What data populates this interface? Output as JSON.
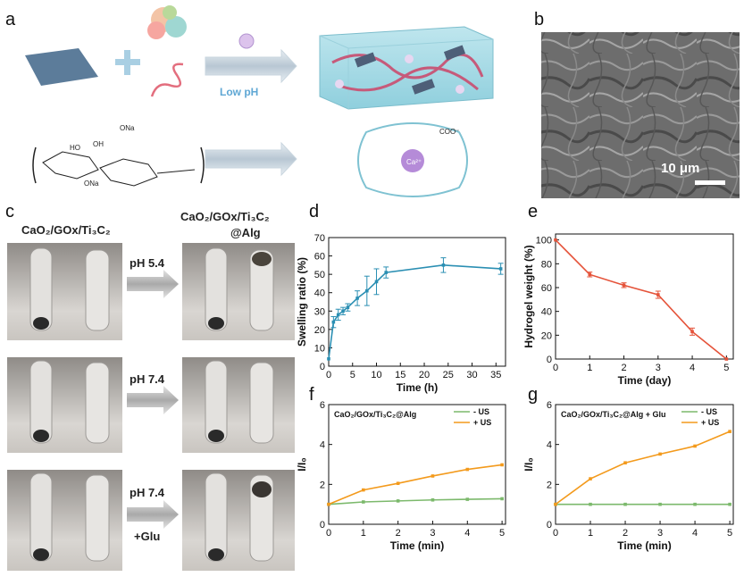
{
  "panel_labels": {
    "a": "a",
    "b": "b",
    "c": "c",
    "d": "d",
    "e": "e",
    "f": "f",
    "g": "g"
  },
  "panel_a": {
    "low_ph": "Low pH",
    "ona_top": "ONa",
    "ona_bottom": "ONa",
    "ho1": "HO",
    "oh1": "OH",
    "ca_ion": "Ca²⁺",
    "coo": "COO⁻"
  },
  "panel_b": {
    "scale_bar": "10 μm"
  },
  "panel_c": {
    "left_title": "CaO₂/GOx/Ti₃C₂",
    "right_title_1": "CaO₂/GOx/Ti₃C₂",
    "right_title_2": "@Alg",
    "arrow1": "pH 5.4",
    "arrow2": "pH 7.4",
    "arrow3_line1": "pH 7.4",
    "arrow3_line2": "+Glu"
  },
  "colors": {
    "swelling": "#2b8fb3",
    "weight": "#e5533a",
    "minus_us": "#7cb96c",
    "plus_us": "#f39a1c"
  },
  "chart_data": [
    {
      "id": "d",
      "type": "line",
      "xlabel": "Time (h)",
      "ylabel": "Swelling ratio (%)",
      "xlim": [
        0,
        37
      ],
      "ylim": [
        0,
        70
      ],
      "xticks": [
        0,
        5,
        10,
        15,
        20,
        25,
        30,
        35
      ],
      "yticks": [
        0,
        10,
        20,
        30,
        40,
        50,
        60,
        70
      ],
      "series": [
        {
          "x": [
            0,
            1,
            2,
            3,
            4,
            6,
            8,
            10,
            12,
            24,
            36
          ],
          "y": [
            4,
            24,
            28,
            30,
            32,
            37,
            41,
            46,
            51,
            55,
            53
          ],
          "err": [
            0,
            3,
            3,
            2,
            2,
            4,
            8,
            7,
            3,
            4,
            3
          ]
        }
      ]
    },
    {
      "id": "e",
      "type": "line",
      "xlabel": "Time (day)",
      "ylabel": "Hydrogel weight (%)",
      "xlim": [
        0,
        5.2
      ],
      "ylim": [
        0,
        105
      ],
      "xticks": [
        0,
        1,
        2,
        3,
        4,
        5
      ],
      "yticks": [
        0,
        20,
        40,
        60,
        80,
        100
      ],
      "series": [
        {
          "x": [
            0,
            1,
            2,
            3,
            4,
            5
          ],
          "y": [
            100,
            71,
            62,
            54,
            23,
            0
          ],
          "err": [
            0,
            2,
            2,
            3,
            3,
            0
          ]
        }
      ]
    },
    {
      "id": "f",
      "type": "line",
      "title": "CaO₂/GOx/Ti₃C₂@Alg",
      "xlabel": "Time (min)",
      "ylabel": "I/I₀",
      "xlim": [
        0,
        5.1
      ],
      "ylim": [
        0,
        6
      ],
      "xticks": [
        0,
        1,
        2,
        3,
        4,
        5
      ],
      "yticks": [
        0,
        2,
        4,
        6
      ],
      "legend": "top-right",
      "series": [
        {
          "name": "- US",
          "x": [
            0,
            1,
            2,
            3,
            4,
            5
          ],
          "y": [
            1,
            1.12,
            1.17,
            1.22,
            1.25,
            1.28
          ]
        },
        {
          "name": "+ US",
          "x": [
            0,
            1,
            2,
            3,
            4,
            5
          ],
          "y": [
            1,
            1.72,
            2.05,
            2.42,
            2.75,
            2.98
          ]
        }
      ]
    },
    {
      "id": "g",
      "type": "line",
      "title": "CaO₂/GOx/Ti₃C₂@Alg + Glu",
      "xlabel": "Time (min)",
      "ylabel": "I/I₀",
      "xlim": [
        0,
        5.1
      ],
      "ylim": [
        0,
        6
      ],
      "xticks": [
        0,
        1,
        2,
        3,
        4,
        5
      ],
      "yticks": [
        0,
        2,
        4,
        6
      ],
      "legend": "top-right",
      "series": [
        {
          "name": "- US",
          "x": [
            0,
            1,
            2,
            3,
            4,
            5
          ],
          "y": [
            1,
            1,
            1,
            1,
            1,
            1
          ]
        },
        {
          "name": "+ US",
          "x": [
            0,
            1,
            2,
            3,
            4,
            5
          ],
          "y": [
            1,
            2.28,
            3.08,
            3.52,
            3.92,
            4.65
          ]
        }
      ]
    }
  ]
}
